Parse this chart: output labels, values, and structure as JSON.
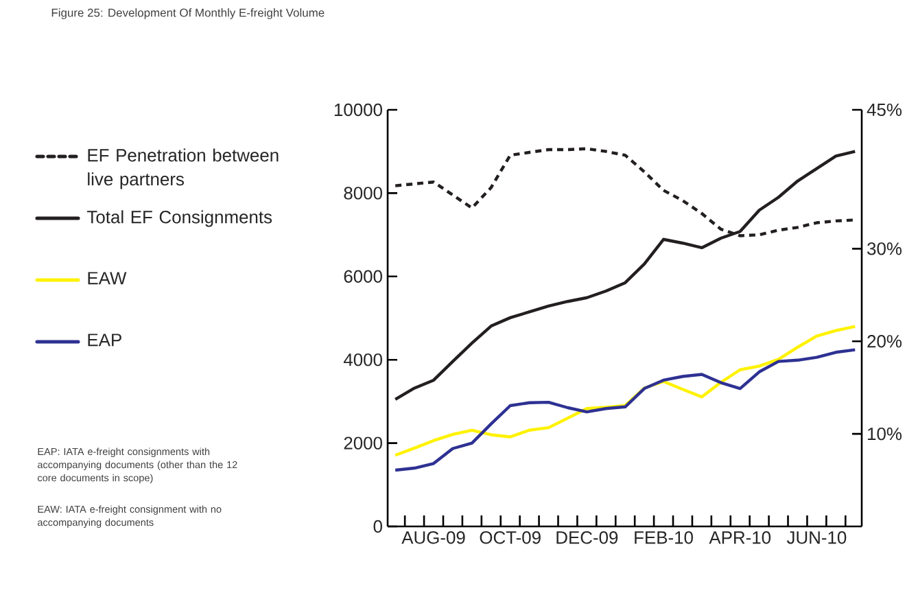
{
  "chart_data": {
    "type": "line",
    "title": "Figure 25: Development Of Monthly E-freight Volume",
    "categories": [
      null,
      null,
      "AUG-09",
      null,
      null,
      null,
      "OCT-09",
      null,
      null,
      null,
      "DEC-09",
      null,
      null,
      null,
      "FEB-10",
      null,
      null,
      null,
      "APR-10",
      null,
      null,
      null,
      "JUN-10",
      null,
      null
    ],
    "series": [
      {
        "name": "EF Penetration between live partners",
        "color": "#231f20",
        "axis": "y2",
        "line_style": "dashed",
        "values": [
          36.8,
          37.0,
          37.2,
          35.8,
          34.4,
          36.6,
          40.1,
          40.4,
          40.7,
          40.7,
          40.8,
          40.5,
          40.1,
          38.3,
          36.3,
          35.2,
          33.8,
          32.1,
          31.4,
          31.5,
          32.0,
          32.3,
          32.8,
          33.0,
          33.1
        ]
      },
      {
        "name": "Total EF Consignments",
        "color": "#231f20",
        "line_style": "solid",
        "values": [
          3050,
          3320,
          3510,
          3960,
          4400,
          4810,
          5010,
          5150,
          5290,
          5400,
          5490,
          5650,
          5850,
          6300,
          6890,
          6800,
          6690,
          6920,
          7080,
          7590,
          7900,
          8290,
          8590,
          8890,
          9000
        ]
      },
      {
        "name": "EAW",
        "color": "#fff200",
        "line_style": "solid",
        "values": [
          1710,
          1880,
          2060,
          2210,
          2310,
          2200,
          2150,
          2310,
          2370,
          2600,
          2830,
          2860,
          2900,
          3320,
          3480,
          3290,
          3110,
          3460,
          3760,
          3850,
          4010,
          4300,
          4570,
          4700,
          4800
        ]
      },
      {
        "name": "EAP",
        "color": "#2e3192",
        "line_style": "solid",
        "values": [
          1350,
          1400,
          1510,
          1870,
          2000,
          2460,
          2900,
          2970,
          2980,
          2850,
          2750,
          2830,
          2870,
          3310,
          3510,
          3600,
          3650,
          3450,
          3310,
          3710,
          3960,
          3990,
          4060,
          4180,
          4240
        ]
      }
    ],
    "ylim": [
      0,
      10000
    ],
    "yticks": [
      0,
      2000,
      4000,
      6000,
      8000,
      10000
    ],
    "y2lim": [
      0,
      45
    ],
    "y2ticks": [
      {
        "value": 10,
        "label": "10%"
      },
      {
        "value": 20,
        "label": "20%"
      },
      {
        "value": 30,
        "label": "30%"
      },
      {
        "value": 45,
        "label": "45%"
      }
    ],
    "legend": "left",
    "annotations": [
      "EAP: IATA e-freight consignments with accompanying documents (other than the 12 core documents in scope)",
      "EAW: IATA e-freight consignment with no accompanying documents"
    ]
  }
}
